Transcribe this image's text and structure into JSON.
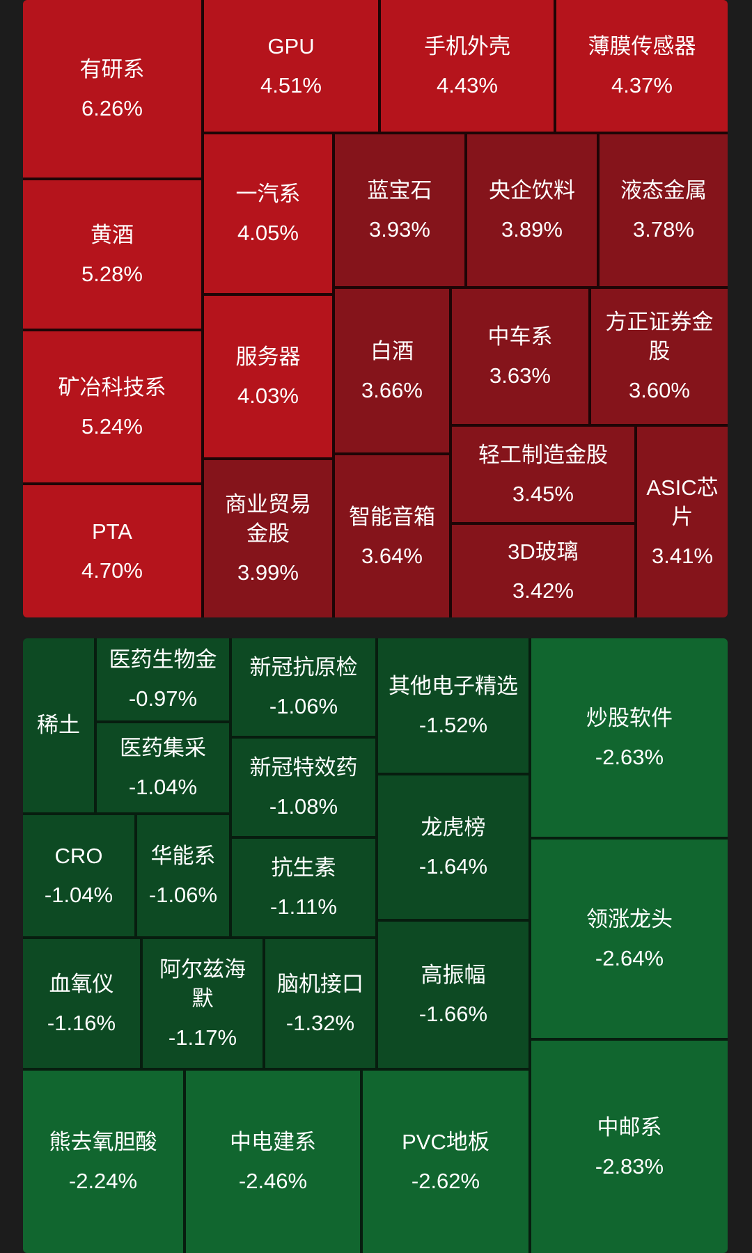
{
  "gainers": [
    {
      "name": "有研系",
      "change": "6.26%"
    },
    {
      "name": "GPU",
      "change": "4.51%"
    },
    {
      "name": "手机外壳",
      "change": "4.43%"
    },
    {
      "name": "薄膜传感器",
      "change": "4.37%"
    },
    {
      "name": "黄酒",
      "change": "5.28%"
    },
    {
      "name": "一汽系",
      "change": "4.05%"
    },
    {
      "name": "蓝宝石",
      "change": "3.93%"
    },
    {
      "name": "央企饮料",
      "change": "3.89%"
    },
    {
      "name": "液态金属",
      "change": "3.78%"
    },
    {
      "name": "矿冶科技系",
      "change": "5.24%"
    },
    {
      "name": "服务器",
      "change": "4.03%"
    },
    {
      "name": "白酒",
      "change": "3.66%"
    },
    {
      "name": "中车系",
      "change": "3.63%"
    },
    {
      "name": "方正证券金股",
      "change": "3.60%"
    },
    {
      "name": "PTA",
      "change": "4.70%"
    },
    {
      "name": "商业贸易金股",
      "change": "3.99%"
    },
    {
      "name": "智能音箱",
      "change": "3.64%"
    },
    {
      "name": "轻工制造金股",
      "change": "3.45%"
    },
    {
      "name": "3D玻璃",
      "change": "3.42%"
    },
    {
      "name": "ASIC芯片",
      "change": "3.41%"
    }
  ],
  "losers": [
    {
      "name": "稀土",
      "change": ""
    },
    {
      "name": "医药生物金",
      "change": "-0.97%"
    },
    {
      "name": "新冠抗原检",
      "change": "-1.06%"
    },
    {
      "name": "其他电子精选",
      "change": "-1.52%"
    },
    {
      "name": "炒股软件",
      "change": "-2.63%"
    },
    {
      "name": "医药集采",
      "change": "-1.04%"
    },
    {
      "name": "新冠特效药",
      "change": "-1.08%"
    },
    {
      "name": "CRO",
      "change": "-1.04%"
    },
    {
      "name": "华能系",
      "change": "-1.06%"
    },
    {
      "name": "抗生素",
      "change": "-1.11%"
    },
    {
      "name": "龙虎榜",
      "change": "-1.64%"
    },
    {
      "name": "领涨龙头",
      "change": "-2.64%"
    },
    {
      "name": "血氧仪",
      "change": "-1.16%"
    },
    {
      "name": "阿尔兹海默",
      "change": "-1.17%"
    },
    {
      "name": "脑机接口",
      "change": "-1.32%"
    },
    {
      "name": "高振幅",
      "change": "-1.66%"
    },
    {
      "name": "熊去氧胆酸",
      "change": "-2.24%"
    },
    {
      "name": "中电建系",
      "change": "-2.46%"
    },
    {
      "name": "PVC地板",
      "change": "-2.62%"
    },
    {
      "name": "中邮系",
      "change": "-2.83%"
    }
  ],
  "colors": {
    "gain_bright": "#b5141c",
    "gain_dark": "#85141b",
    "loss_dark": "#0d4a23",
    "loss_bright": "#11662f",
    "background": "#1c1c1c"
  }
}
